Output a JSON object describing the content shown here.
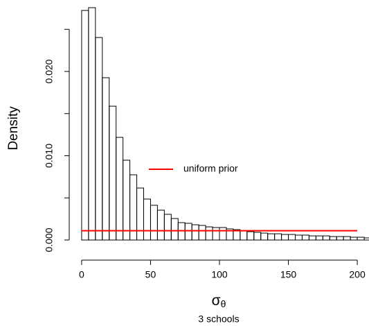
{
  "chart_data": {
    "type": "histogram",
    "xlabel": {
      "symbol": "σ",
      "subscript": "θ"
    },
    "subtitle": "3 schools",
    "ylabel": "Density",
    "bins": [
      0,
      5,
      10,
      15,
      20,
      25,
      30,
      35,
      40,
      45,
      50,
      55,
      60,
      65,
      70,
      75,
      80,
      85,
      90,
      95,
      100,
      105,
      110,
      115,
      120,
      125,
      130,
      135,
      140,
      145,
      150,
      155,
      160,
      165,
      170,
      175,
      180,
      185,
      190,
      195,
      200,
      205,
      210
    ],
    "values": [
      0.02724,
      0.02757,
      0.02403,
      0.01926,
      0.01588,
      0.01218,
      0.00947,
      0.00774,
      0.00617,
      0.00486,
      0.00412,
      0.00354,
      0.00305,
      0.00255,
      0.00206,
      0.00198,
      0.00181,
      0.00173,
      0.00156,
      0.00148,
      0.00148,
      0.00132,
      0.00123,
      0.00107,
      0.00099,
      0.00091,
      0.00082,
      0.00074,
      0.00074,
      0.00066,
      0.00066,
      0.00058,
      0.00058,
      0.00049,
      0.00049,
      0.00049,
      0.00041,
      0.00041,
      0.00041,
      0.00033,
      0.00033,
      0.00025
    ],
    "color": "#000000",
    "lines": [
      {
        "name": "uniform prior",
        "color": "#ff0000",
        "x": [
          0,
          200
        ],
        "values": [
          0.0011,
          0.0011
        ]
      }
    ],
    "xlim": [
      -9,
      208.5
    ],
    "ylim": [
      -0.00115,
      0.02848
    ],
    "xticks": [
      0,
      50,
      100,
      150,
      200
    ],
    "yticks": [
      {
        "value": 0,
        "label": "0.000"
      },
      {
        "value": 0.01,
        "label": "0.010"
      },
      {
        "value": 0.02,
        "label": "0.020"
      }
    ],
    "y_minor_ticks": [
      0.005,
      0.015,
      0.025
    ]
  }
}
